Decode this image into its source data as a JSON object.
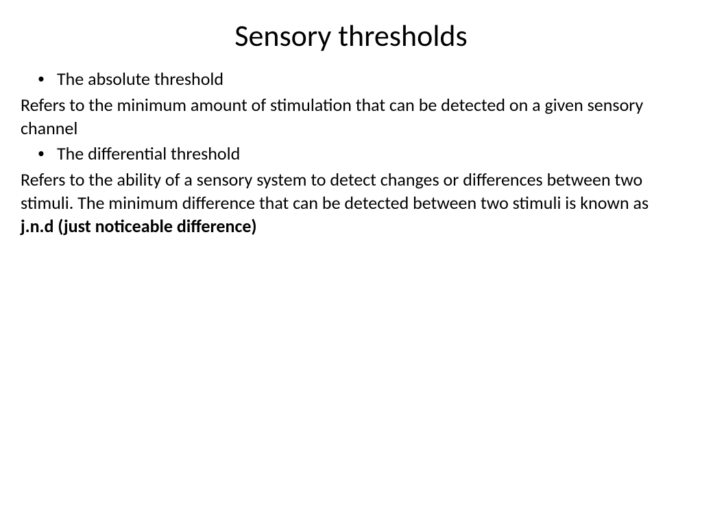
{
  "slide": {
    "title": "Sensory thresholds",
    "title_fontsize": 44,
    "body_fontsize": 26,
    "background_color": "#ffffff",
    "text_color": "#000000",
    "font_family": "Calibri",
    "bullet1": "The absolute threshold",
    "body1": "Refers to the minimum amount of stimulation that can be detected on a given sensory channel",
    "bullet2": "The differential threshold",
    "body2_part1": "Refers to the ability of a sensory system to detect changes or differences between two stimuli. The minimum difference that can be detected between two stimuli is known as ",
    "body2_bold": "j.n.d (just noticeable difference)"
  }
}
